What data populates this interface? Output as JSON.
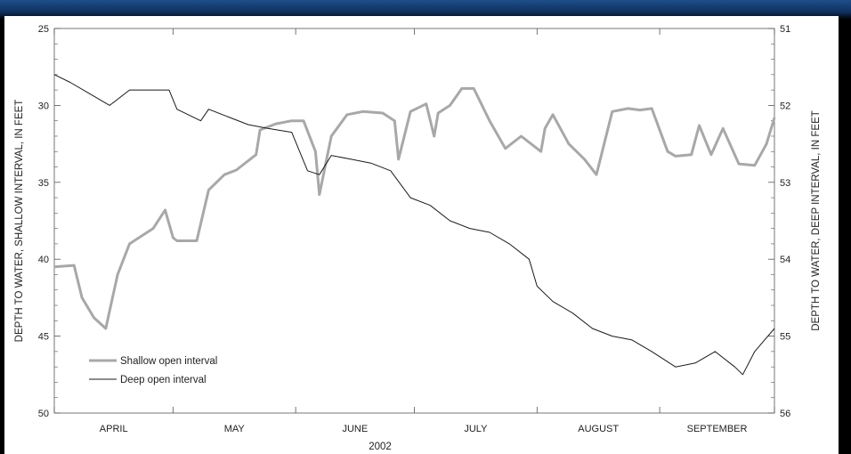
{
  "chart_data": {
    "type": "line",
    "title": "",
    "xlabel": "2002",
    "months": [
      "APRIL",
      "MAY",
      "JUNE",
      "JULY",
      "AUGUST",
      "SEPTEMBER"
    ],
    "xlim": [
      "2002-04-01",
      "2002-09-30"
    ],
    "left_axis": {
      "label": "DEPTH TO WATER, SHALLOW INTERVAL, IN FEET",
      "ylim": [
        25,
        50
      ],
      "ticks": [
        25,
        30,
        35,
        40,
        45,
        50
      ],
      "inverted": true
    },
    "right_axis": {
      "label": "DEPTH TO WATER, DEEP INTERVAL, IN FEET",
      "ylim": [
        51,
        56
      ],
      "ticks": [
        51,
        52,
        53,
        54,
        55,
        56
      ],
      "inverted": true
    },
    "legend_position": "bottom-left",
    "colors": {
      "shallow": "#a8a8a8",
      "deep": "#1a1a1a"
    },
    "series": [
      {
        "name": "Shallow open interval",
        "axis": "left",
        "x": [
          "2002-04-01",
          "2002-04-06",
          "2002-04-08",
          "2002-04-11",
          "2002-04-14",
          "2002-04-17",
          "2002-04-20",
          "2002-04-23",
          "2002-04-26",
          "2002-04-29",
          "2002-05-01",
          "2002-05-02",
          "2002-05-07",
          "2002-05-10",
          "2002-05-14",
          "2002-05-17",
          "2002-05-22",
          "2002-05-23",
          "2002-05-27",
          "2002-05-31",
          "2002-06-03",
          "2002-06-06",
          "2002-06-07",
          "2002-06-10",
          "2002-06-14",
          "2002-06-18",
          "2002-06-23",
          "2002-06-26",
          "2002-06-27",
          "2002-06-30",
          "2002-07-04",
          "2002-07-06",
          "2002-07-07",
          "2002-07-10",
          "2002-07-13",
          "2002-07-16",
          "2002-07-20",
          "2002-07-24",
          "2002-07-28",
          "2002-08-02",
          "2002-08-03",
          "2002-08-05",
          "2002-08-09",
          "2002-08-13",
          "2002-08-16",
          "2002-08-20",
          "2002-08-24",
          "2002-08-27",
          "2002-08-30",
          "2002-09-03",
          "2002-09-05",
          "2002-09-09",
          "2002-09-11",
          "2002-09-14",
          "2002-09-17",
          "2002-09-21",
          "2002-09-25",
          "2002-09-28",
          "2002-09-30"
        ],
        "values": [
          40.5,
          40.4,
          42.5,
          43.8,
          44.5,
          41.0,
          39.0,
          38.5,
          38.0,
          36.8,
          38.6,
          38.8,
          38.8,
          35.5,
          34.5,
          34.2,
          33.2,
          31.6,
          31.2,
          31.0,
          31.0,
          33.0,
          35.8,
          32.0,
          30.6,
          30.4,
          30.5,
          31.0,
          33.5,
          30.4,
          29.9,
          32.0,
          30.5,
          30.0,
          28.9,
          28.9,
          31.0,
          32.8,
          32.0,
          33.0,
          31.5,
          30.6,
          32.5,
          33.5,
          34.5,
          30.4,
          30.2,
          30.3,
          30.2,
          33.0,
          33.3,
          33.2,
          31.3,
          33.2,
          31.5,
          33.8,
          33.9,
          32.5,
          30.8
        ]
      },
      {
        "name": "Deep open interval",
        "axis": "right",
        "x": [
          "2002-04-01",
          "2002-04-05",
          "2002-04-10",
          "2002-04-15",
          "2002-04-20",
          "2002-04-25",
          "2002-04-30",
          "2002-05-02",
          "2002-05-08",
          "2002-05-10",
          "2002-05-15",
          "2002-05-20",
          "2002-05-25",
          "2002-05-31",
          "2002-06-02",
          "2002-06-04",
          "2002-06-07",
          "2002-06-10",
          "2002-06-15",
          "2002-06-20",
          "2002-06-25",
          "2002-06-30",
          "2002-07-05",
          "2002-07-10",
          "2002-07-15",
          "2002-07-20",
          "2002-07-25",
          "2002-07-30",
          "2002-08-01",
          "2002-08-05",
          "2002-08-10",
          "2002-08-15",
          "2002-08-20",
          "2002-08-25",
          "2002-08-30",
          "2002-09-05",
          "2002-09-10",
          "2002-09-15",
          "2002-09-20",
          "2002-09-22",
          "2002-09-25",
          "2002-09-30"
        ],
        "values": [
          51.6,
          51.7,
          51.85,
          52.0,
          51.8,
          51.8,
          51.8,
          52.05,
          52.2,
          52.05,
          52.15,
          52.25,
          52.3,
          52.35,
          52.6,
          52.85,
          52.9,
          52.65,
          52.7,
          52.75,
          52.85,
          53.2,
          53.3,
          53.5,
          53.6,
          53.65,
          53.8,
          54.0,
          54.35,
          54.55,
          54.7,
          54.9,
          55.0,
          55.05,
          55.2,
          55.4,
          55.35,
          55.2,
          55.4,
          55.5,
          55.2,
          54.9
        ]
      }
    ]
  }
}
